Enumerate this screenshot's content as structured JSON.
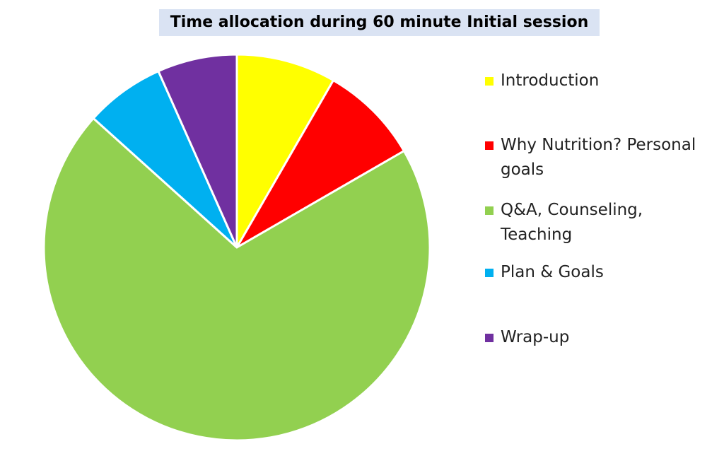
{
  "chart_data": {
    "type": "pie",
    "title": "Time allocation during 60 minute Initial session",
    "categories": [
      "Introduction",
      "Why Nutrition? Personal goals",
      "Q&A, Counseling, Teaching",
      "Plan & Goals",
      "Wrap-up"
    ],
    "values": [
      5,
      5,
      42,
      4,
      4
    ],
    "colors": [
      "#ffff00",
      "#ff0000",
      "#92d050",
      "#00b0f0",
      "#7030a0"
    ],
    "legend": "right"
  }
}
